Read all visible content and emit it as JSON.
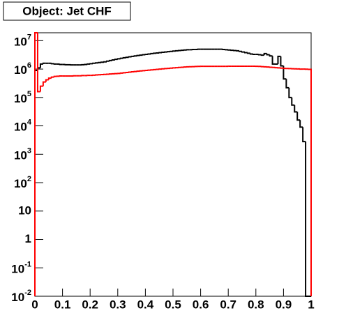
{
  "chart_data": {
    "type": "histogram",
    "title": "Object: Jet CHF",
    "log_y": true,
    "bins": [
      0,
      0.01,
      0.02,
      0.03,
      0.04,
      0.05,
      0.06,
      0.07,
      0.08,
      0.09,
      0.1,
      0.11,
      0.12,
      0.13,
      0.14,
      0.15,
      0.16,
      0.17,
      0.18,
      0.19,
      0.2,
      0.21,
      0.22,
      0.23,
      0.24,
      0.25,
      0.26,
      0.27,
      0.28,
      0.29,
      0.3,
      0.31,
      0.32,
      0.33,
      0.34,
      0.35,
      0.36,
      0.37,
      0.38,
      0.39,
      0.4,
      0.41,
      0.42,
      0.43,
      0.44,
      0.45,
      0.46,
      0.47,
      0.48,
      0.49,
      0.5,
      0.51,
      0.52,
      0.53,
      0.54,
      0.55,
      0.56,
      0.57,
      0.58,
      0.59,
      0.6,
      0.61,
      0.62,
      0.63,
      0.64,
      0.65,
      0.66,
      0.67,
      0.68,
      0.69,
      0.7,
      0.71,
      0.72,
      0.73,
      0.74,
      0.75,
      0.76,
      0.77,
      0.78,
      0.79,
      0.8,
      0.81,
      0.82,
      0.83,
      0.84,
      0.85,
      0.86,
      0.87,
      0.88,
      0.89,
      0.9,
      0.91,
      0.92,
      0.93,
      0.94,
      0.95,
      0.96,
      0.97,
      0.98,
      0.99,
      1
    ],
    "series": [
      {
        "color": "#000000",
        "values": [
          900000.0,
          1100000.0,
          1500000.0,
          1600000.0,
          1600000.0,
          1600000.0,
          1550000.0,
          1500000.0,
          1500000.0,
          1450000.0,
          1450000.0,
          1420000.0,
          1420000.0,
          1400000.0,
          1400000.0,
          1400000.0,
          1400000.0,
          1420000.0,
          1450000.0,
          1500000.0,
          1550000.0,
          1600000.0,
          1650000.0,
          1700000.0,
          1750000.0,
          1800000.0,
          1900000.0,
          2000000.0,
          2100000.0,
          2200000.0,
          2300000.0,
          2400000.0,
          2500000.0,
          2600000.0,
          2700000.0,
          2800000.0,
          2900000.0,
          3000000.0,
          3100000.0,
          3200000.0,
          3300000.0,
          3400000.0,
          3500000.0,
          3600000.0,
          3700000.0,
          3800000.0,
          3900000.0,
          4000000.0,
          4100000.0,
          4200000.0,
          4300000.0,
          4400000.0,
          4500000.0,
          4600000.0,
          4700000.0,
          4800000.0,
          4800000.0,
          4900000.0,
          4900000.0,
          5000000.0,
          5000000.0,
          5000000.0,
          5000000.0,
          5000000.0,
          5000000.0,
          5000000.0,
          5000000.0,
          5000000.0,
          4900000.0,
          4800000.0,
          4700000.0,
          4600000.0,
          4500000.0,
          4400000.0,
          4200000.0,
          4000000.0,
          3800000.0,
          3600000.0,
          3400000.0,
          3300000.0,
          3300000.0,
          3200000.0,
          3100000.0,
          3500000.0,
          3200000.0,
          2900000.0,
          1500000.0,
          1500000.0,
          2800000.0,
          1300000.0,
          450000.0,
          220000.0,
          100000.0,
          54000.0,
          31000.0,
          16000.0,
          9000.0,
          2800.0,
          0,
          0
        ]
      },
      {
        "color": "#ff0000",
        "values": [
          30000000.0,
          160000.0,
          250000.0,
          350000.0,
          420000.0,
          480000.0,
          520000.0,
          550000.0,
          560000.0,
          570000.0,
          570000.0,
          570000.0,
          570000.0,
          570000.0,
          580000.0,
          580000.0,
          580000.0,
          590000.0,
          590000.0,
          600000.0,
          600000.0,
          610000.0,
          620000.0,
          630000.0,
          640000.0,
          650000.0,
          660000.0,
          670000.0,
          680000.0,
          690000.0,
          700000.0,
          720000.0,
          740000.0,
          760000.0,
          780000.0,
          800000.0,
          820000.0,
          840000.0,
          860000.0,
          880000.0,
          900000.0,
          920000.0,
          940000.0,
          960000.0,
          980000.0,
          1000000.0,
          1020000.0,
          1040000.0,
          1060000.0,
          1080000.0,
          1100000.0,
          1120000.0,
          1140000.0,
          1160000.0,
          1180000.0,
          1200000.0,
          1210000.0,
          1220000.0,
          1230000.0,
          1240000.0,
          1250000.0,
          1250000.0,
          1250000.0,
          1250000.0,
          1250000.0,
          1250000.0,
          1250000.0,
          1250000.0,
          1250000.0,
          1250000.0,
          1260000.0,
          1260000.0,
          1260000.0,
          1260000.0,
          1260000.0,
          1260000.0,
          1260000.0,
          1260000.0,
          1260000.0,
          1260000.0,
          1250000.0,
          1240000.0,
          1220000.0,
          1200000.0,
          1180000.0,
          1160000.0,
          1140000.0,
          1120000.0,
          1100000.0,
          1080000.0,
          1060000.0,
          1050000.0,
          1040000.0,
          1030000.0,
          1020000.0,
          1010000.0,
          1000000.0,
          1000000.0,
          990000.0,
          980000.0
        ]
      }
    ],
    "xlim": [
      0,
      1
    ],
    "xticks": [
      0,
      0.1,
      0.2,
      0.3,
      0.4,
      0.5,
      0.6,
      0.7,
      0.8,
      0.9,
      1
    ],
    "ylim": [
      0.01,
      19000000.0
    ],
    "yticks": [
      {
        "value": 0.01,
        "label": "10",
        "exponent": "-2"
      },
      {
        "value": 0.1,
        "label": "10",
        "exponent": "-1"
      },
      1,
      10,
      {
        "value": 100,
        "label": "10",
        "exponent": "2"
      },
      {
        "value": 1000,
        "label": "10",
        "exponent": "3"
      },
      {
        "value": 10000,
        "label": "10",
        "exponent": "4"
      },
      {
        "value": 100000,
        "label": "10",
        "exponent": "5"
      },
      {
        "value": 1000000,
        "label": "10",
        "exponent": "6"
      },
      {
        "value": 10000000,
        "label": "10",
        "exponent": "7"
      }
    ]
  }
}
